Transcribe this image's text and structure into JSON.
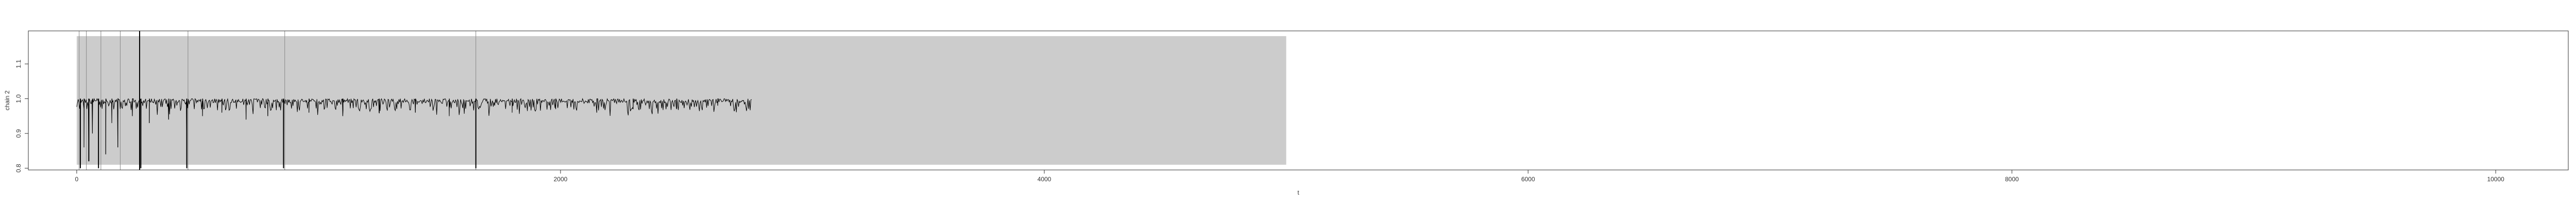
{
  "chart_data": {
    "type": "line",
    "title": "",
    "xlabel": "t",
    "ylabel": "chain 2",
    "xlim": [
      -200,
      10300
    ],
    "ylim": [
      0.795,
      1.195
    ],
    "x_ticks": [
      0,
      2000,
      4000,
      6000,
      8000,
      10000
    ],
    "x_tick_labels": [
      "0",
      "2000",
      "4000",
      "6000",
      "8000",
      "10000"
    ],
    "y_ticks": [
      0.8,
      0.9,
      1.0,
      1.1
    ],
    "y_tick_labels": [
      "0.8",
      "0.9",
      "1.0",
      "1.1"
    ],
    "grid": false,
    "colors": {
      "line": "#000000",
      "shade": "#cccccc",
      "marker": "#888888",
      "axis": "#333333"
    },
    "shaded_region": {
      "x": [
        0,
        5000
      ],
      "y": [
        0.81,
        1.18
      ]
    },
    "vertical_markers": [
      {
        "x": 10,
        "color": "#888888",
        "width": 1
      },
      {
        "x": 40,
        "color": "#888888",
        "width": 1
      },
      {
        "x": 100,
        "color": "#888888",
        "width": 1
      },
      {
        "x": 180,
        "color": "#888888",
        "width": 1
      },
      {
        "x": 260,
        "color": "#000000",
        "width": 2
      },
      {
        "x": 460,
        "color": "#888888",
        "width": 1
      },
      {
        "x": 860,
        "color": "#888888",
        "width": 1
      },
      {
        "x": 1650,
        "color": "#888888",
        "width": 1
      }
    ],
    "series": [
      {
        "baseline": 1.0,
        "x_range": [
          0,
          2790
        ],
        "noise": 0.012,
        "spikes": [
          {
            "x": 15,
            "y": 0.8
          },
          {
            "x": 30,
            "y": 0.86
          },
          {
            "x": 50,
            "y": 0.82
          },
          {
            "x": 65,
            "y": 0.9
          },
          {
            "x": 90,
            "y": 0.8
          },
          {
            "x": 120,
            "y": 0.84
          },
          {
            "x": 145,
            "y": 0.93
          },
          {
            "x": 170,
            "y": 0.86
          },
          {
            "x": 230,
            "y": 0.95
          },
          {
            "x": 265,
            "y": 0.8
          },
          {
            "x": 300,
            "y": 0.93
          },
          {
            "x": 380,
            "y": 0.94
          },
          {
            "x": 455,
            "y": 0.8
          },
          {
            "x": 520,
            "y": 0.95
          },
          {
            "x": 600,
            "y": 0.96
          },
          {
            "x": 700,
            "y": 0.94
          },
          {
            "x": 790,
            "y": 0.95
          },
          {
            "x": 855,
            "y": 0.8
          },
          {
            "x": 960,
            "y": 0.96
          },
          {
            "x": 1100,
            "y": 0.95
          },
          {
            "x": 1250,
            "y": 0.96
          },
          {
            "x": 1400,
            "y": 0.96
          },
          {
            "x": 1540,
            "y": 0.95
          },
          {
            "x": 1650,
            "y": 0.8
          },
          {
            "x": 1800,
            "y": 0.96
          },
          {
            "x": 1980,
            "y": 0.97
          },
          {
            "x": 2150,
            "y": 0.96
          },
          {
            "x": 2300,
            "y": 0.97
          },
          {
            "x": 2480,
            "y": 0.97
          },
          {
            "x": 2650,
            "y": 0.98
          }
        ]
      }
    ]
  }
}
